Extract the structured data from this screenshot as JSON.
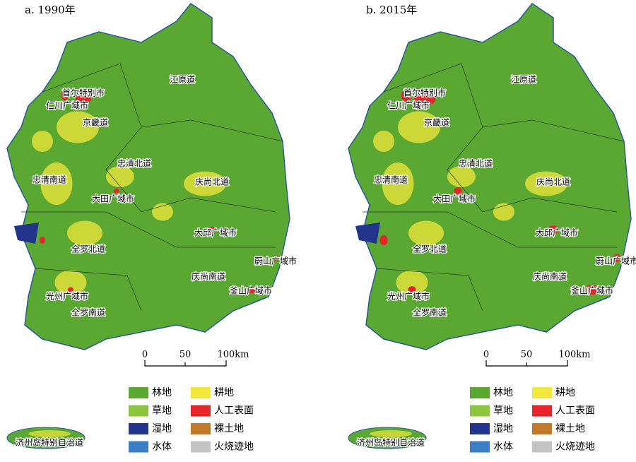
{
  "panels": [
    {
      "title": "a. 1990年",
      "regions": [
        "首尔特别市",
        "仁川广域市",
        "京畿道",
        "江原道",
        "忠清北道",
        "忠清南道",
        "大田广域市",
        "庆尚北道",
        "大邱广域市",
        "全罗北道",
        "蔚山广域市",
        "庆尚南道",
        "釜山广域市",
        "光州广域市",
        "全罗南道"
      ],
      "island_label": "济州岛特别自治道",
      "scale_bar": [
        "0",
        "50",
        "100km"
      ]
    },
    {
      "title": "b. 2015年",
      "regions": [
        "首尔特别市",
        "仁川广域市",
        "京畿道",
        "江原道",
        "忠清北道",
        "忠清南道",
        "大田广域市",
        "庆尚北道",
        "大邱广域市",
        "全罗北道",
        "蔚山广域市",
        "庆尚南道",
        "釜山广域市",
        "光州广域市",
        "全罗南道"
      ],
      "island_label": "济州岛特别自治道",
      "scale_bar": [
        "0",
        "50",
        "100km"
      ]
    }
  ],
  "legend": [
    {
      "label": "林地",
      "color": "#5aa832"
    },
    {
      "label": "耕地",
      "color": "#f2e83a"
    },
    {
      "label": "草地",
      "color": "#8cc63f"
    },
    {
      "label": "人工表面",
      "color": "#e8242a"
    },
    {
      "label": "湿地",
      "color": "#22348c"
    },
    {
      "label": "裸土地",
      "color": "#c07a2a"
    },
    {
      "label": "水体",
      "color": "#3a7fc8"
    },
    {
      "label": "火烧迹地",
      "color": "#c4c4c4"
    }
  ]
}
